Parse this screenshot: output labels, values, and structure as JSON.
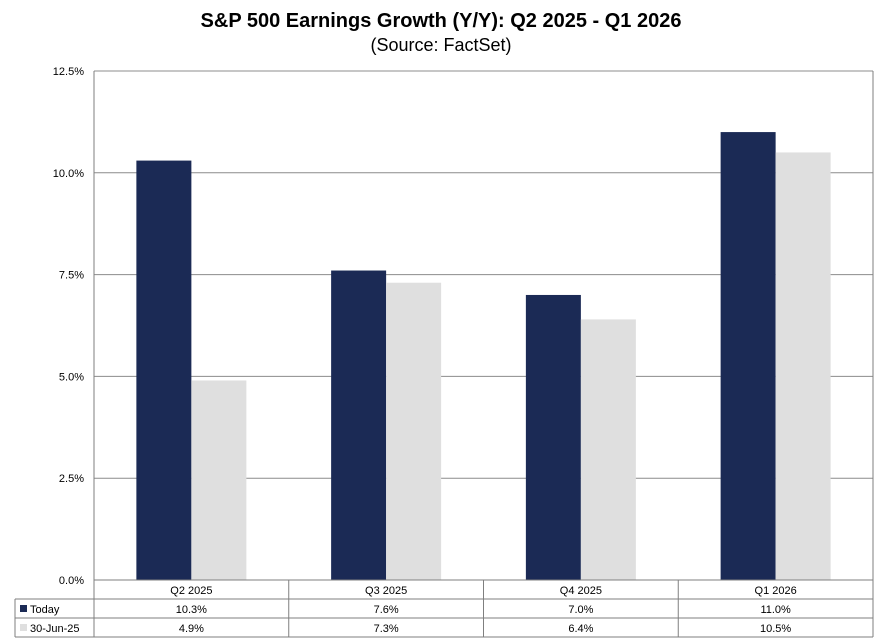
{
  "title": "S&P 500 Earnings Growth (Y/Y): Q2 2025 - Q1 2026",
  "subtitle": "(Source: FactSet)",
  "colors": {
    "today": "#1b2a55",
    "prior": "#dfdfdf",
    "grid": "#8c8c8c",
    "border": "#7f7f7f"
  },
  "chart_data": {
    "type": "bar",
    "categories": [
      "Q2 2025",
      "Q3 2025",
      "Q4 2025",
      "Q1 2026"
    ],
    "series": [
      {
        "name": "Today",
        "values": [
          10.3,
          7.6,
          7.0,
          11.0
        ],
        "labels": [
          "10.3%",
          "7.6%",
          "7.0%",
          "11.0%"
        ],
        "color": "#1b2a55"
      },
      {
        "name": "30-Jun-25",
        "values": [
          4.9,
          7.3,
          6.4,
          10.5
        ],
        "labels": [
          "4.9%",
          "7.3%",
          "6.4%",
          "10.5%"
        ],
        "color": "#dfdfdf"
      }
    ],
    "ylim": [
      0,
      12.5
    ],
    "yticks": [
      "0.0%",
      "2.5%",
      "5.0%",
      "7.5%",
      "10.0%",
      "12.5%"
    ],
    "ytick_values": [
      0,
      2.5,
      5.0,
      7.5,
      10.0,
      12.5
    ],
    "grid": true,
    "legend": "data-table"
  }
}
